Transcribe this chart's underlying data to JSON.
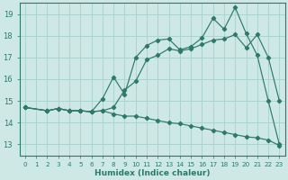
{
  "xlabel": "Humidex (Indice chaleur)",
  "xlim": [
    -0.5,
    23.5
  ],
  "ylim": [
    12.5,
    19.5
  ],
  "yticks": [
    13,
    14,
    15,
    16,
    17,
    18,
    19
  ],
  "xticks": [
    0,
    1,
    2,
    3,
    4,
    5,
    6,
    7,
    8,
    9,
    10,
    11,
    12,
    13,
    14,
    15,
    16,
    17,
    18,
    19,
    20,
    21,
    22,
    23
  ],
  "xtick_labels": [
    "0",
    "1",
    "2",
    "3",
    "4",
    "5",
    "6",
    "7",
    "8",
    "9",
    "10",
    "11",
    "12",
    "13",
    "14",
    "15",
    "16",
    "17",
    "18",
    "19",
    "20",
    "21",
    "22",
    "23"
  ],
  "background_color": "#cde8e5",
  "grid_color": "#aed4d0",
  "line_color": "#2d7a6b",
  "line1_x": [
    0,
    2,
    3,
    4,
    5,
    6,
    7,
    8,
    9,
    10,
    11,
    12,
    13,
    14,
    15,
    16,
    17,
    18,
    19,
    20,
    21,
    22,
    23
  ],
  "line1_y": [
    14.7,
    14.55,
    14.65,
    14.55,
    14.55,
    14.5,
    15.1,
    16.1,
    15.3,
    17.0,
    17.55,
    17.8,
    17.85,
    17.35,
    17.5,
    17.9,
    18.8,
    18.3,
    19.3,
    18.1,
    17.1,
    15.0,
    13.0
  ],
  "line2_x": [
    0,
    2,
    3,
    4,
    5,
    6,
    7,
    8,
    9,
    10,
    11,
    12,
    13,
    14,
    15,
    16,
    17,
    18,
    19,
    20,
    21,
    22,
    23
  ],
  "line2_y": [
    14.7,
    14.55,
    14.65,
    14.55,
    14.55,
    14.5,
    14.55,
    14.7,
    15.5,
    15.9,
    16.9,
    17.1,
    17.4,
    17.3,
    17.4,
    17.6,
    17.8,
    17.85,
    18.05,
    17.45,
    18.05,
    17.0,
    15.0
  ],
  "line3_x": [
    0,
    2,
    3,
    4,
    5,
    6,
    7,
    8,
    9,
    10,
    11,
    12,
    13,
    14,
    15,
    16,
    17,
    18,
    19,
    20,
    21,
    22,
    23
  ],
  "line3_y": [
    14.7,
    14.55,
    14.65,
    14.55,
    14.55,
    14.5,
    14.55,
    14.4,
    14.3,
    14.3,
    14.2,
    14.1,
    14.0,
    13.95,
    13.85,
    13.75,
    13.65,
    13.55,
    13.45,
    13.35,
    13.3,
    13.2,
    12.95
  ]
}
